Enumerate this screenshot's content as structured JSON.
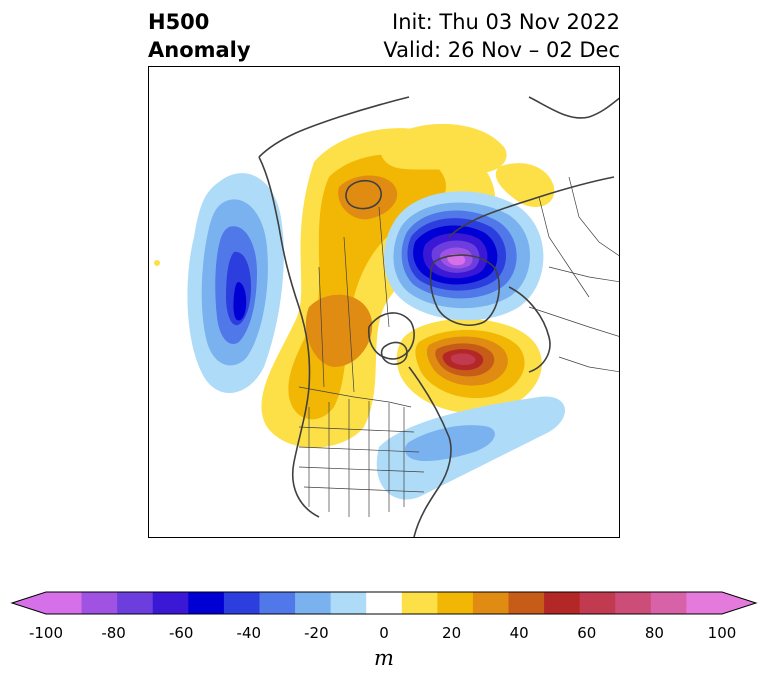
{
  "title": {
    "left_line1": "H500",
    "left_line2": "Anomaly",
    "right_line1": "Init: Thu 03 Nov 2022",
    "right_line2": "Valid: 26 Nov – 02 Dec"
  },
  "colorbar": {
    "unit": "m",
    "min": -100,
    "max": 100,
    "extend": "both",
    "ticks": [
      -100,
      -80,
      -60,
      -40,
      -20,
      0,
      20,
      40,
      60,
      80,
      100
    ],
    "tick_labels": [
      "-100",
      "-80",
      "-60",
      "-40",
      "-20",
      "0",
      "20",
      "40",
      "60",
      "80",
      "100"
    ],
    "levels": [
      -100,
      -90,
      -80,
      -70,
      -60,
      -50,
      -40,
      -30,
      -20,
      -10,
      10,
      20,
      30,
      40,
      50,
      60,
      70,
      80,
      90,
      100
    ],
    "colors": [
      "#d670e8",
      "#a052e2",
      "#6c3ede",
      "#3a18d6",
      "#0000d4",
      "#2c3ede",
      "#5078e8",
      "#7ab2f0",
      "#aedcf8",
      "#ffffff",
      "#fde047",
      "#f2b705",
      "#e08c12",
      "#c65c18",
      "#b32727",
      "#c23a50",
      "#cc4d78",
      "#d862a8",
      "#e47adc"
    ],
    "under_color": "#d670e8",
    "over_color": "#e47adc"
  },
  "map": {
    "projection": "polar-stereographic",
    "region": "Northern Hemisphere / North America",
    "anomaly_features": [
      {
        "name": "NE Pacific trough",
        "sign": "negative",
        "peak_m": -60
      },
      {
        "name": "Polar vortex over Arctic",
        "sign": "negative",
        "peak_m": -100
      },
      {
        "name": "Greenland / N Atlantic ridge",
        "sign": "positive",
        "peak_m": 60
      },
      {
        "name": "Western North America ridge",
        "sign": "positive",
        "peak_m": 40
      },
      {
        "name": "Alaska / Canada ridge",
        "sign": "positive",
        "peak_m": 30
      },
      {
        "name": "Eastern US trough",
        "sign": "negative",
        "peak_m": -30
      }
    ]
  }
}
